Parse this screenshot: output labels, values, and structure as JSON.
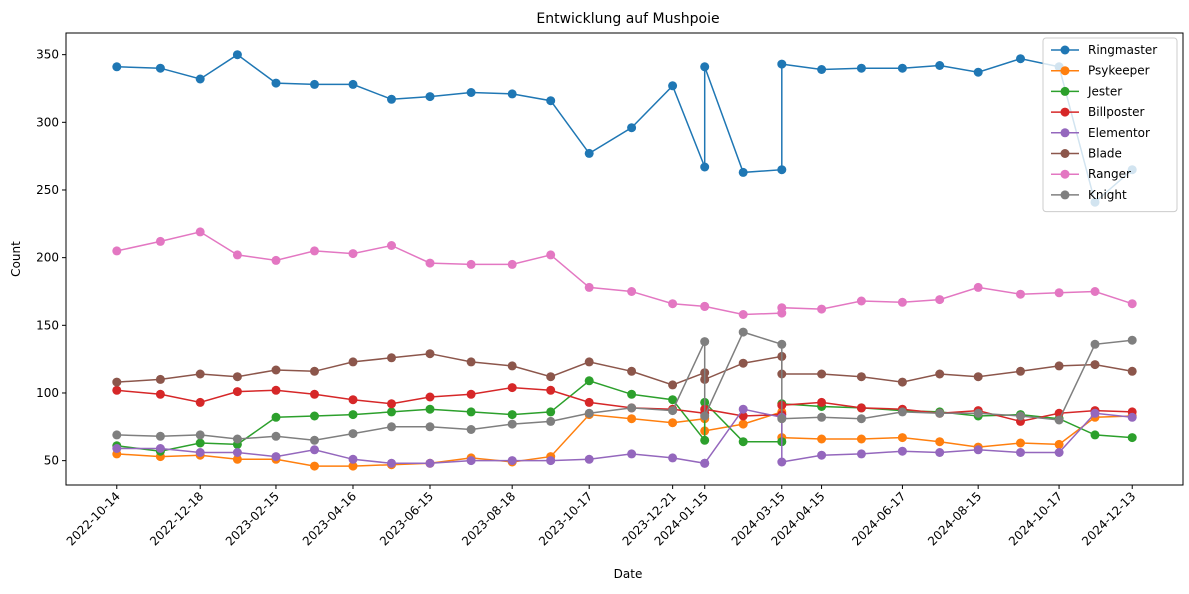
{
  "chart_data": {
    "type": "line",
    "title": "Entwicklung auf Mushpoie",
    "xlabel": "Date",
    "ylabel": "Count",
    "x": [
      "2022-10-14",
      "2022-11-17",
      "2022-12-18",
      "2023-01-16",
      "2023-02-15",
      "2023-03-17",
      "2023-04-16",
      "2023-05-16",
      "2023-06-15",
      "2023-07-17",
      "2023-08-18",
      "2023-09-17",
      "2023-10-17",
      "2023-11-19",
      "2023-12-21",
      "2024-01-15",
      "2024-01-15",
      "2024-02-14",
      "2024-03-15",
      "2024-03-15",
      "2024-04-15",
      "2024-05-16",
      "2024-06-17",
      "2024-07-16",
      "2024-08-15",
      "2024-09-17",
      "2024-10-17",
      "2024-11-14",
      "2024-12-13"
    ],
    "xticks": [
      "2022-10-14",
      "2022-12-18",
      "2023-02-15",
      "2023-04-16",
      "2023-06-15",
      "2023-08-18",
      "2023-10-17",
      "2023-12-21",
      "2024-01-15",
      "2024-03-15",
      "2024-04-15",
      "2024-06-17",
      "2024-08-15",
      "2024-10-17",
      "2024-12-13"
    ],
    "ylim": [
      32,
      366
    ],
    "yticks": [
      50,
      100,
      150,
      200,
      250,
      300,
      350
    ],
    "grid": false,
    "legend": "top-right",
    "series": [
      {
        "name": "Ringmaster",
        "color": "#1f77b4",
        "values": [
          341,
          340,
          332,
          350,
          329,
          328,
          328,
          317,
          319,
          322,
          321,
          316,
          277,
          296,
          327,
          267,
          341,
          263,
          265,
          343,
          339,
          340,
          340,
          342,
          337,
          347,
          341,
          241,
          265
        ]
      },
      {
        "name": "Psykeeper",
        "color": "#ff7f0e",
        "values": [
          55,
          53,
          54,
          51,
          51,
          46,
          46,
          47,
          48,
          52,
          49,
          53,
          84,
          81,
          78,
          81,
          72,
          77,
          86,
          67,
          66,
          66,
          67,
          64,
          60,
          63,
          62,
          82,
          83
        ]
      },
      {
        "name": "Jester",
        "color": "#2ca02c",
        "values": [
          61,
          57,
          63,
          62,
          82,
          83,
          84,
          86,
          88,
          86,
          84,
          86,
          109,
          99,
          95,
          65,
          93,
          64,
          64,
          92,
          90,
          89,
          87,
          86,
          83,
          84,
          81,
          69,
          67
        ]
      },
      {
        "name": "Billposter",
        "color": "#d62728",
        "values": [
          102,
          99,
          93,
          101,
          102,
          99,
          95,
          92,
          97,
          99,
          104,
          102,
          93,
          89,
          88,
          85,
          88,
          83,
          84,
          91,
          93,
          89,
          88,
          85,
          87,
          79,
          85,
          87,
          86
        ]
      },
      {
        "name": "Elementor",
        "color": "#9467bd",
        "values": [
          59,
          59,
          56,
          56,
          53,
          58,
          51,
          48,
          48,
          50,
          50,
          50,
          51,
          55,
          52,
          48,
          48,
          88,
          82,
          49,
          54,
          55,
          57,
          56,
          58,
          56,
          56,
          85,
          82
        ]
      },
      {
        "name": "Blade",
        "color": "#8c564b",
        "values": [
          108,
          110,
          114,
          112,
          117,
          116,
          123,
          126,
          129,
          123,
          120,
          112,
          123,
          116,
          106,
          115,
          110,
          122,
          127,
          114,
          114,
          112,
          108,
          114,
          112,
          116,
          120,
          121,
          116
        ]
      },
      {
        "name": "Ranger",
        "color": "#e377c2",
        "values": [
          205,
          212,
          219,
          202,
          198,
          205,
          203,
          209,
          196,
          195,
          195,
          202,
          178,
          175,
          166,
          164,
          164,
          158,
          159,
          163,
          162,
          168,
          167,
          169,
          178,
          173,
          174,
          175,
          166
        ]
      },
      {
        "name": "Knight",
        "color": "#7f7f7f",
        "values": [
          69,
          68,
          69,
          66,
          68,
          65,
          70,
          75,
          75,
          73,
          77,
          79,
          85,
          89,
          87,
          138,
          83,
          145,
          136,
          81,
          82,
          81,
          86,
          85,
          85,
          83,
          80,
          136,
          139
        ]
      }
    ]
  }
}
